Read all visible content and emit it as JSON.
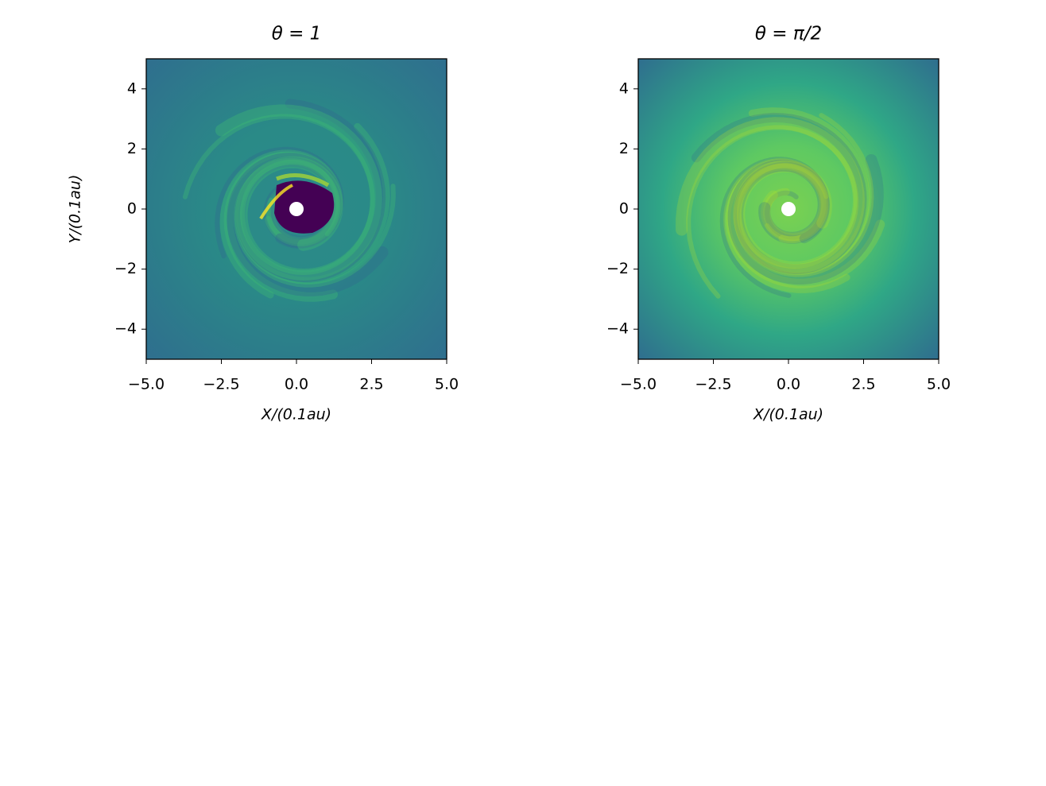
{
  "chart_data": [
    {
      "type": "image",
      "title": "θ = 1",
      "xlabel": "X/(0.1au)",
      "ylabel": "Y/(0.1au)",
      "xlim": [
        -5,
        5
      ],
      "ylim": [
        -5,
        5
      ],
      "xticks": [
        {
          "value": -5,
          "label": "−5.0"
        },
        {
          "value": -2.5,
          "label": "−2.5"
        },
        {
          "value": 0,
          "label": "0.0"
        },
        {
          "value": 2.5,
          "label": "2.5"
        },
        {
          "value": 5,
          "label": "5.0"
        }
      ],
      "yticks": [
        {
          "value": -4,
          "label": "−4"
        },
        {
          "value": -2,
          "label": "−2"
        },
        0,
        2,
        4
      ]
    },
    {
      "type": "image",
      "title": "θ = π/2",
      "xlabel": "X/(0.1au)",
      "xlim": [
        -5,
        5
      ],
      "ylim": [
        -5,
        5
      ],
      "xticks": [
        {
          "value": -5,
          "label": "−5.0"
        },
        {
          "value": -2.5,
          "label": "−2.5"
        },
        {
          "value": 0,
          "label": "0.0"
        },
        {
          "value": 2.5,
          "label": "2.5"
        },
        {
          "value": 5,
          "label": "5.0"
        }
      ],
      "yticks": [
        {
          "value": -4,
          "label": "−4"
        },
        {
          "value": -2,
          "label": "−2"
        },
        0,
        2,
        4
      ]
    }
  ]
}
